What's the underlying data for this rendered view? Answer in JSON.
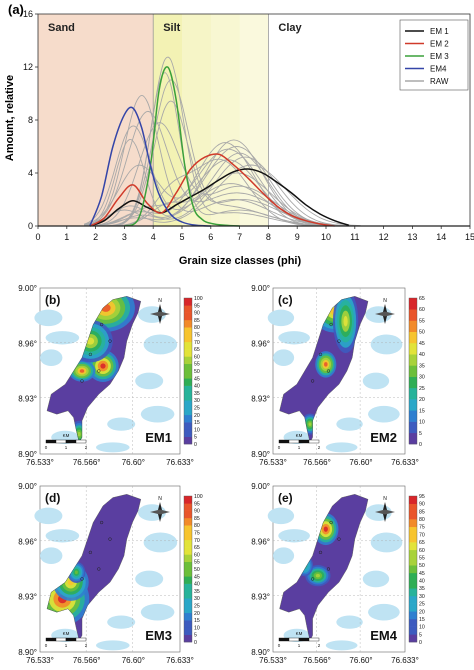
{
  "chart_data": [
    {
      "panel": "(a)",
      "type": "line",
      "xlabel": "Grain size classes (phi)",
      "ylabel": "Amount, relative",
      "xlim": [
        0,
        15
      ],
      "ylim": [
        0,
        16
      ],
      "xticks": [
        0,
        1,
        2,
        3,
        4,
        5,
        6,
        7,
        8,
        9,
        10,
        11,
        12,
        13,
        14,
        15
      ],
      "xtick_labels": [
        "0",
        "1",
        "2",
        "3",
        "4",
        "5",
        "6",
        "7",
        "8",
        "9",
        "10",
        "11",
        "12",
        "13",
        "14",
        "15"
      ],
      "yticks": [
        0,
        4,
        8,
        12,
        16
      ],
      "regions": [
        {
          "name": "Sand",
          "from": 0,
          "to": 4,
          "color": "#f6dccb"
        },
        {
          "name": "Silt",
          "from": 4,
          "to": 8,
          "color": "#f3f2b4"
        },
        {
          "name": "Clay",
          "from": 8,
          "to": 15,
          "color": "#ffffff"
        }
      ],
      "legend_position": "top-right",
      "series": [
        {
          "name": "EM 1",
          "color": "#111111",
          "x": [
            1.8,
            2.3,
            2.8,
            3.3,
            3.8,
            4.3,
            4.8,
            5.3,
            5.8,
            6.3,
            6.8,
            7.3,
            7.8,
            8.3,
            8.8,
            9.3,
            9.8,
            10.3,
            10.8
          ],
          "y": [
            0,
            0.4,
            1.3,
            1.9,
            1.4,
            1.0,
            1.6,
            2.2,
            2.8,
            3.5,
            4.1,
            4.3,
            4.0,
            3.3,
            2.5,
            1.6,
            0.9,
            0.4,
            0.05
          ]
        },
        {
          "name": "EM 2",
          "color": "#d03a2a",
          "x": [
            1.8,
            2.3,
            2.8,
            3.3,
            3.8,
            4.3,
            4.8,
            5.3,
            5.8,
            6.3,
            6.8,
            7.3,
            7.8,
            8.3,
            8.8,
            9.3,
            9.8,
            10.3
          ],
          "y": [
            0,
            0.6,
            2.1,
            3.1,
            1.7,
            1.0,
            2.5,
            4.3,
            5.2,
            5.4,
            4.6,
            3.6,
            2.5,
            1.5,
            0.8,
            0.4,
            0.15,
            0
          ]
        },
        {
          "name": "EM 3",
          "color": "#3aa03a",
          "x": [
            3.0,
            3.5,
            3.9,
            4.2,
            4.5,
            4.8,
            5.1,
            5.4,
            5.7,
            6.0,
            6.5,
            7.0
          ],
          "y": [
            0,
            0.6,
            4.5,
            10.2,
            12.0,
            9.5,
            4.5,
            1.4,
            0.5,
            0.2,
            0.05,
            0
          ]
        },
        {
          "name": "EM4",
          "color": "#3445a8",
          "x": [
            1.8,
            2.2,
            2.6,
            3.0,
            3.3,
            3.6,
            3.9,
            4.2,
            4.6,
            5.0,
            5.5,
            6.0
          ],
          "y": [
            0,
            2.2,
            6.0,
            8.4,
            8.9,
            7.4,
            4.6,
            2.4,
            0.9,
            0.3,
            0.05,
            0
          ]
        },
        {
          "name": "RAW",
          "color": "#a8a8a8"
        }
      ]
    },
    {
      "panel": "(b)",
      "type": "heatmap",
      "label": "EM1",
      "colorbar_ticks": [
        0,
        5,
        10,
        15,
        20,
        25,
        30,
        35,
        40,
        45,
        50,
        55,
        60,
        65,
        70,
        75,
        80,
        85,
        90,
        95,
        100
      ],
      "x_tick_labels": [
        "76.533°",
        "76.566°",
        "76.60°",
        "76.633°"
      ],
      "y_tick_labels": [
        "8.90°",
        "8.93°",
        "8.96°",
        "9.00°"
      ]
    },
    {
      "panel": "(c)",
      "type": "heatmap",
      "label": "EM2",
      "colorbar_ticks": [
        0,
        5,
        10,
        15,
        20,
        25,
        30,
        35,
        40,
        45,
        50,
        55,
        60,
        65
      ],
      "x_tick_labels": [
        "76.533°",
        "76.566°",
        "76.60°",
        "76.633°"
      ],
      "y_tick_labels": [
        "8.90°",
        "8.93°",
        "8.96°",
        "9.00°"
      ]
    },
    {
      "panel": "(d)",
      "type": "heatmap",
      "label": "EM3",
      "colorbar_ticks": [
        0,
        5,
        10,
        15,
        20,
        25,
        30,
        35,
        40,
        45,
        50,
        55,
        60,
        65,
        70,
        75,
        80,
        85,
        90,
        95,
        100
      ],
      "x_tick_labels": [
        "76.533°",
        "76.566°",
        "76.60°",
        "76.633°"
      ],
      "y_tick_labels": [
        "8.90°",
        "8.93°",
        "8.96°",
        "9.00°"
      ]
    },
    {
      "panel": "(e)",
      "type": "heatmap",
      "label": "EM4",
      "colorbar_ticks": [
        0,
        5,
        10,
        15,
        20,
        25,
        30,
        35,
        40,
        45,
        50,
        55,
        60,
        65,
        70,
        75,
        80,
        85,
        90,
        95
      ],
      "x_tick_labels": [
        "76.533°",
        "76.566°",
        "76.60°",
        "76.633°"
      ],
      "y_tick_labels": [
        "8.90°",
        "8.93°",
        "8.96°",
        "9.00°"
      ]
    }
  ],
  "map_common": {
    "scale_label": "KM",
    "scale_ticks": [
      "0",
      "1",
      "2"
    ],
    "north_label": "N"
  },
  "colorscale": [
    "#5a3ea0",
    "#3d5bbf",
    "#2f7fd0",
    "#2aa7c8",
    "#27b39a",
    "#2fae55",
    "#6cbf3a",
    "#a8d23a",
    "#e2e33a",
    "#f7c42f",
    "#f28a2a",
    "#e9552b",
    "#d8262a"
  ],
  "colors": {
    "lake": "#bfe3f3",
    "map_bg": "#ffffff",
    "axes": "#333333"
  }
}
